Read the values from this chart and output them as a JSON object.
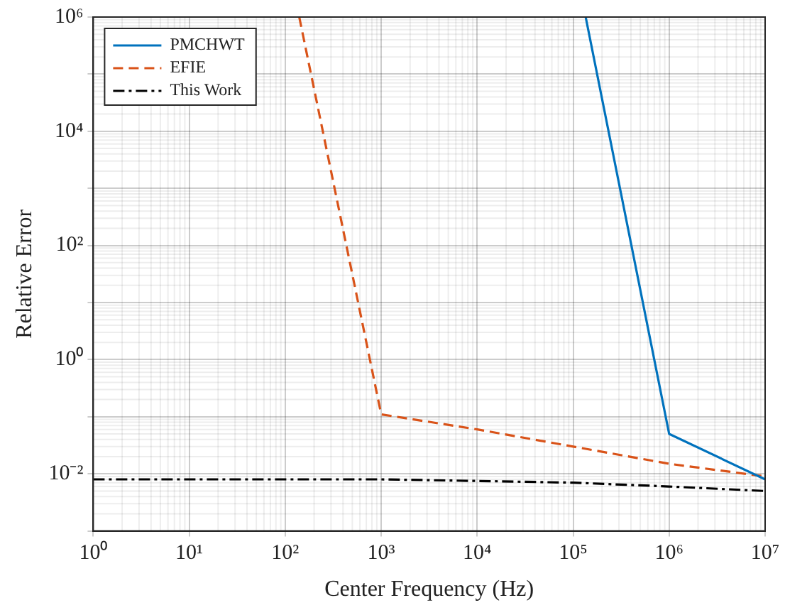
{
  "chart_data": {
    "type": "line",
    "xlabel": "Center Frequency (Hz)",
    "ylabel": "Relative Error",
    "log": "xy",
    "grid": true,
    "legend": "top left",
    "marker": "none",
    "xlim": [
      1,
      10000000
    ],
    "ylim": [
      0.001,
      1000000
    ],
    "xticks": [
      {
        "value": 1,
        "label": "10⁰"
      },
      {
        "value": 10,
        "label": "10¹"
      },
      {
        "value": 100,
        "label": "10²"
      },
      {
        "value": 1000,
        "label": "10³"
      },
      {
        "value": 10000,
        "label": "10⁴"
      },
      {
        "value": 100000,
        "label": "10⁵"
      },
      {
        "value": 1000000,
        "label": "10⁶"
      },
      {
        "value": 10000000,
        "label": "10⁷"
      }
    ],
    "yticks": [
      {
        "value": 0.001,
        "label": null
      },
      {
        "value": 0.01,
        "label": "10⁻²"
      },
      {
        "value": 0.1,
        "label": null
      },
      {
        "value": 1,
        "label": "10⁰"
      },
      {
        "value": 10,
        "label": null
      },
      {
        "value": 100,
        "label": "10²"
      },
      {
        "value": 1000,
        "label": null
      },
      {
        "value": 10000,
        "label": "10⁴"
      },
      {
        "value": 100000,
        "label": null
      },
      {
        "value": 1000000,
        "label": "10⁶"
      }
    ],
    "series": [
      {
        "name": "PMCHWT",
        "color": "#0072bd",
        "line_style": "solid",
        "x": [
          135000,
          1000000,
          10000000
        ],
        "values": [
          1000000,
          0.05,
          0.008
        ]
      },
      {
        "name": "EFIE",
        "color": "#d95319",
        "line_style": "dashed",
        "x": [
          140,
          1000,
          10000,
          100000,
          1000000,
          10000000
        ],
        "values": [
          1000000,
          0.11,
          0.06,
          0.03,
          0.015,
          0.009
        ]
      },
      {
        "name": "This Work",
        "color": "#000000",
        "line_style": "dashdot",
        "x": [
          1,
          1000,
          10000,
          100000,
          1000000,
          10000000
        ],
        "values": [
          0.008,
          0.008,
          0.0075,
          0.007,
          0.006,
          0.005
        ]
      }
    ]
  }
}
